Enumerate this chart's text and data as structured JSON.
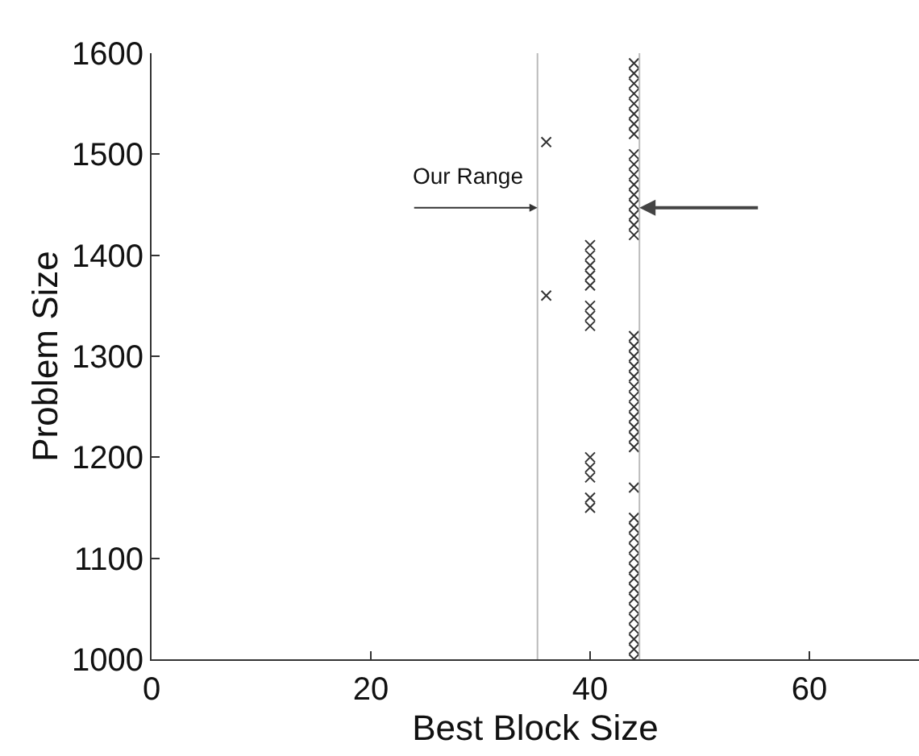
{
  "chart_data": {
    "type": "scatter",
    "xlabel": "Best Block Size",
    "ylabel": "Problem Size",
    "xlim": [
      0,
      70
    ],
    "xticks": [
      0,
      20,
      40,
      60
    ],
    "ylim": [
      1000,
      1600
    ],
    "yticks": [
      1000,
      1100,
      1200,
      1300,
      1400,
      1500,
      1600
    ],
    "grid": false,
    "marker": "cross",
    "series": [
      {
        "color": "#333333",
        "x": [
          36,
          36
        ],
        "values": [
          1360,
          1512
        ]
      },
      {
        "color": "#333333",
        "x": [
          40,
          40,
          40,
          40,
          40,
          40,
          40,
          40,
          40,
          40,
          40,
          40,
          40
        ],
        "values": [
          1150,
          1160,
          1180,
          1190,
          1200,
          1330,
          1340,
          1350,
          1370,
          1380,
          1390,
          1400,
          1410
        ]
      },
      {
        "color": "#333333",
        "x": [
          44,
          44,
          44,
          44,
          44,
          44,
          44,
          44,
          44,
          44,
          44,
          44,
          44,
          44,
          44,
          44,
          44,
          44,
          44,
          44,
          44,
          44,
          44,
          44,
          44,
          44,
          44,
          44,
          44,
          44,
          44,
          44,
          44,
          44,
          44,
          44,
          44,
          44,
          44,
          44,
          44,
          44,
          44,
          44,
          44
        ],
        "values": [
          1000,
          1010,
          1020,
          1030,
          1040,
          1050,
          1060,
          1070,
          1080,
          1090,
          1100,
          1110,
          1120,
          1130,
          1140,
          1170,
          1210,
          1220,
          1230,
          1240,
          1250,
          1260,
          1270,
          1280,
          1290,
          1300,
          1310,
          1320,
          1420,
          1430,
          1440,
          1450,
          1460,
          1470,
          1480,
          1490,
          1500,
          1520,
          1530,
          1540,
          1550,
          1560,
          1570,
          1580,
          1590
        ]
      }
    ],
    "ref_lines": [
      {
        "axis": "x",
        "value": 35.2,
        "color": "#bbbbbb"
      },
      {
        "axis": "x",
        "value": 44.5,
        "color": "#bbbbbb"
      }
    ],
    "annotations": [
      "Our Range"
    ]
  }
}
